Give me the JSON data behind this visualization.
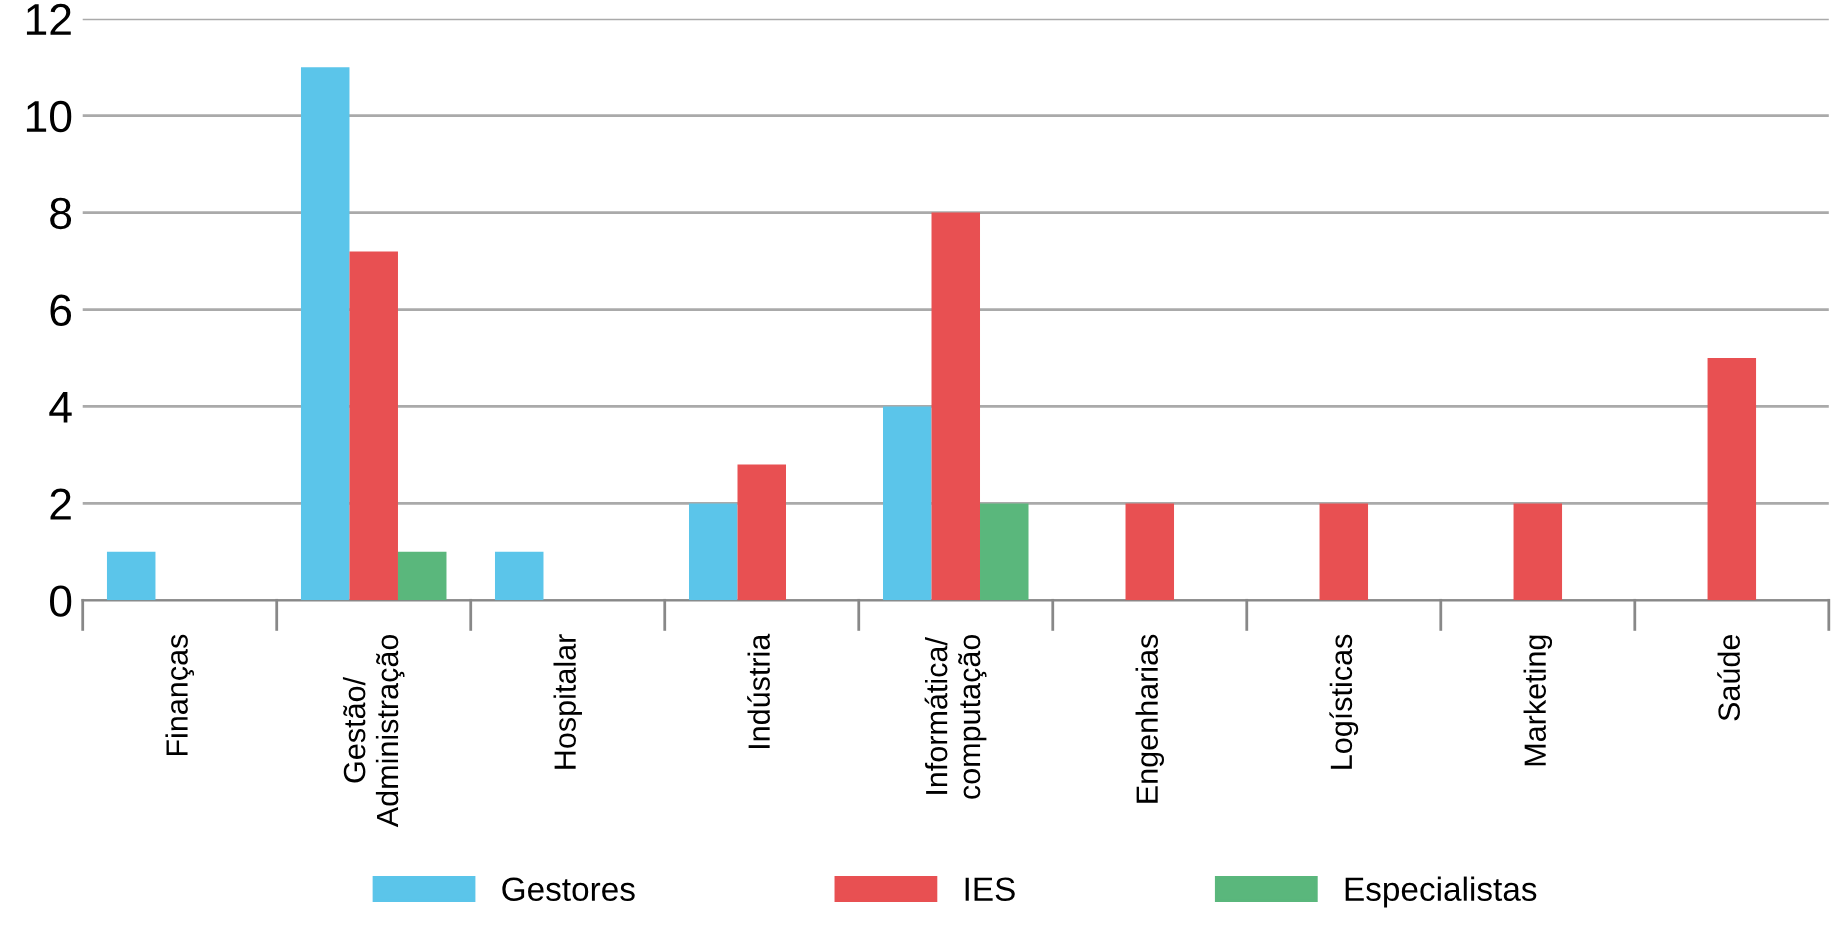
{
  "chart_data": {
    "type": "bar",
    "categories": [
      "Finanças",
      "Gestão/\nAdministração",
      "Hospitalar",
      "Indústria",
      "Informática/\ncomputação",
      "Engenharias",
      "Logísticas",
      "Marketing",
      "Saúde"
    ],
    "series": [
      {
        "name": "Gestores",
        "color": "#5bc5ea",
        "values": [
          1,
          11,
          1,
          2,
          4,
          null,
          null,
          null,
          null
        ]
      },
      {
        "name": "IES",
        "color": "#e85052",
        "values": [
          null,
          7.2,
          null,
          2.8,
          8,
          2,
          2,
          2,
          5
        ]
      },
      {
        "name": "Especialistas",
        "color": "#5ab77c",
        "values": [
          null,
          1,
          null,
          null,
          2,
          null,
          null,
          null,
          null
        ]
      }
    ],
    "ylim": [
      0,
      12
    ],
    "yticks": [
      0,
      2,
      4,
      6,
      8,
      10,
      12
    ],
    "grid": "y",
    "legend": "bottom"
  }
}
